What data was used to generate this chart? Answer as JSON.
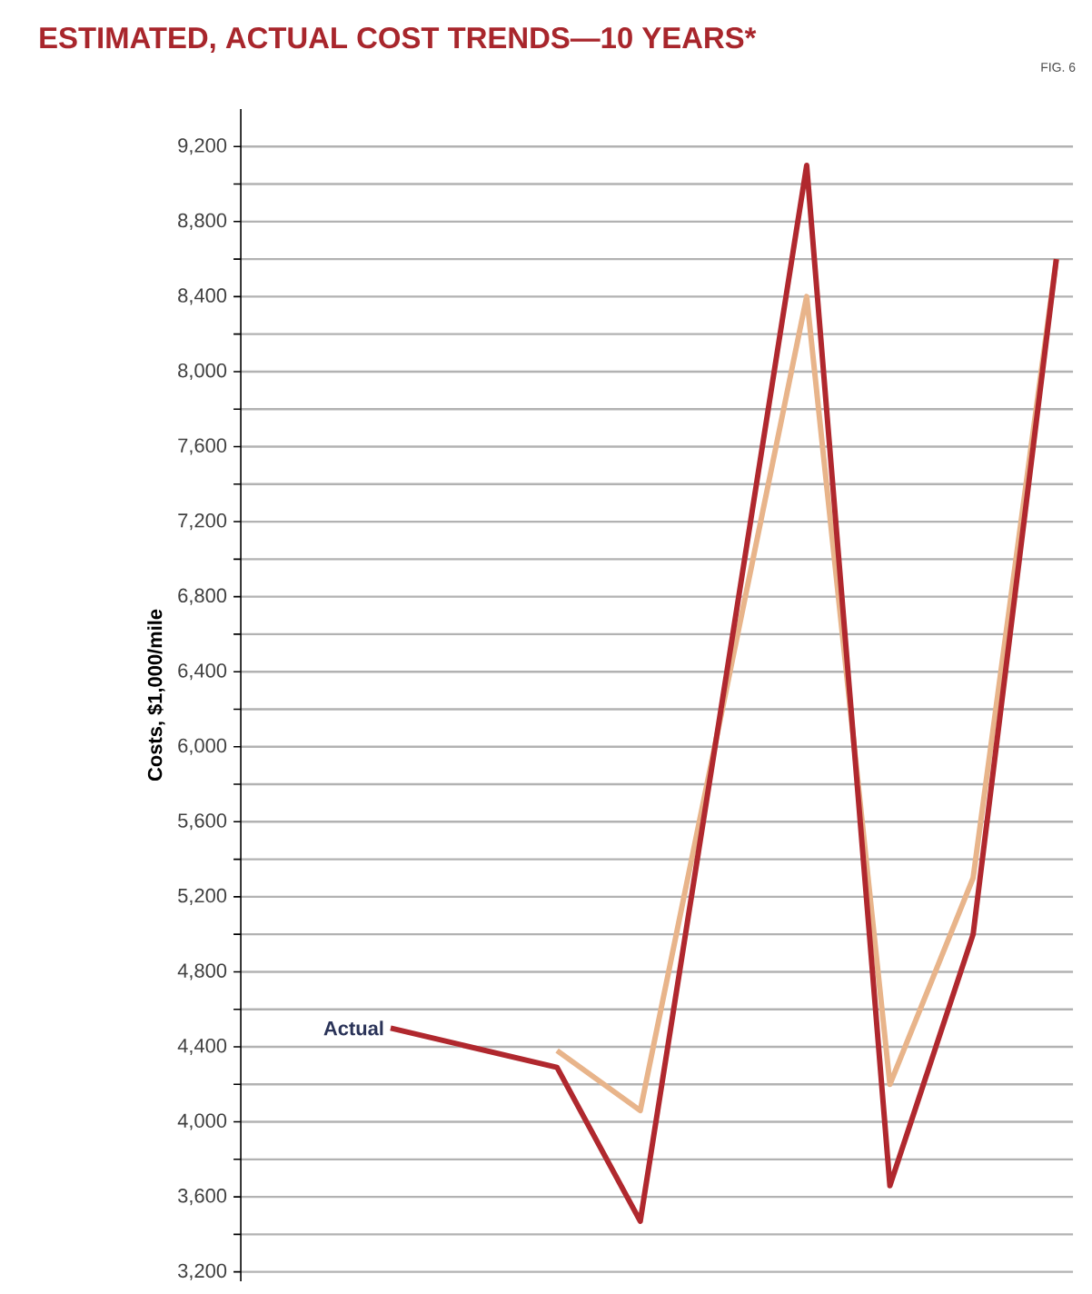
{
  "chart_data": {
    "type": "line",
    "title": "ESTIMATED, ACTUAL COST TRENDS—10 YEARS*",
    "ylabel": "Costs, $1,000/mile",
    "annotations": [
      "FIG. 6"
    ],
    "categories": [
      null,
      null,
      null,
      null,
      null,
      null,
      null,
      null,
      null,
      null
    ],
    "ylim": [
      3150,
      9400
    ],
    "tick_labels": "y",
    "grid": "y",
    "line_style": "solid",
    "yticks": [
      {
        "value": 3200,
        "label": "3,200"
      },
      {
        "value": 3400,
        "label": null
      },
      {
        "value": 3600,
        "label": "3,600"
      },
      {
        "value": 3800,
        "label": null
      },
      {
        "value": 4000,
        "label": "4,000"
      },
      {
        "value": 4200,
        "label": null
      },
      {
        "value": 4400,
        "label": "4,400"
      },
      {
        "value": 4600,
        "label": null
      },
      {
        "value": 4800,
        "label": "4,800"
      },
      {
        "value": 5000,
        "label": null
      },
      {
        "value": 5200,
        "label": "5,200"
      },
      {
        "value": 5400,
        "label": null
      },
      {
        "value": 5600,
        "label": "5,600"
      },
      {
        "value": 5800,
        "label": null
      },
      {
        "value": 6000,
        "label": "6,000"
      },
      {
        "value": 6200,
        "label": null
      },
      {
        "value": 6400,
        "label": "6,400"
      },
      {
        "value": 6600,
        "label": null
      },
      {
        "value": 6800,
        "label": "6,800"
      },
      {
        "value": 7000,
        "label": null
      },
      {
        "value": 7200,
        "label": "7,200"
      },
      {
        "value": 7400,
        "label": null
      },
      {
        "value": 7600,
        "label": "7,600"
      },
      {
        "value": 7800,
        "label": null
      },
      {
        "value": 8000,
        "label": "8,000"
      },
      {
        "value": 8200,
        "label": null
      },
      {
        "value": 8400,
        "label": "8,400"
      },
      {
        "value": 8600,
        "label": null
      },
      {
        "value": 8800,
        "label": "8,800"
      },
      {
        "value": 9000,
        "label": null
      },
      {
        "value": 9200,
        "label": "9,200"
      }
    ],
    "series": [
      {
        "color": "#e8b48a",
        "values": [
          null,
          null,
          null,
          4380,
          4060,
          null,
          8400,
          4200,
          5300,
          8600
        ]
      },
      {
        "name": "Actual",
        "color": "#b0282e",
        "values": [
          null,
          4500,
          null,
          4290,
          3470,
          null,
          9100,
          3660,
          5000,
          8600
        ]
      }
    ]
  }
}
